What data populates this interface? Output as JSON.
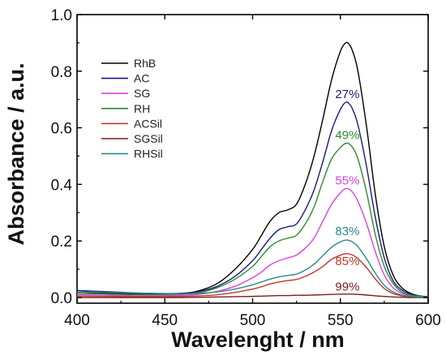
{
  "chart_data": {
    "type": "line",
    "title": "",
    "xlabel": "Wavelenght / nm",
    "ylabel": "Absorbance / a.u.",
    "xlim": [
      400,
      600
    ],
    "ylim": [
      -0.02,
      1.0
    ],
    "xticks": [
      400,
      450,
      500,
      550,
      600
    ],
    "yticks": [
      0.0,
      0.2,
      0.4,
      0.6,
      0.8,
      1.0
    ],
    "xtick_labels": [
      "400",
      "450",
      "500",
      "550",
      "600"
    ],
    "ytick_labels": [
      "0.0",
      "0.2",
      "0.4",
      "0.6",
      "0.8",
      "1.0"
    ],
    "grid": false,
    "legend_position": "top-left",
    "series": [
      {
        "name": "RhB",
        "color": "#000000",
        "x": [
          400,
          420,
          440,
          460,
          470,
          480,
          490,
          500,
          505,
          510,
          515,
          520,
          525,
          530,
          535,
          540,
          545,
          550,
          553,
          555,
          557,
          560,
          565,
          570,
          575,
          580,
          585,
          590,
          595,
          600
        ],
        "y": [
          0.02,
          0.015,
          0.012,
          0.015,
          0.025,
          0.05,
          0.1,
          0.17,
          0.22,
          0.27,
          0.3,
          0.31,
          0.33,
          0.4,
          0.5,
          0.63,
          0.77,
          0.87,
          0.9,
          0.895,
          0.87,
          0.8,
          0.6,
          0.36,
          0.18,
          0.08,
          0.035,
          0.015,
          0.006,
          0.003
        ]
      },
      {
        "name": "AC",
        "color": "#1a1a7a",
        "x": [
          400,
          420,
          440,
          460,
          470,
          480,
          490,
          500,
          505,
          510,
          515,
          520,
          525,
          530,
          535,
          540,
          545,
          550,
          553,
          555,
          557,
          560,
          565,
          570,
          575,
          580,
          585,
          590,
          595,
          600
        ],
        "y": [
          0.025,
          0.02,
          0.015,
          0.015,
          0.022,
          0.04,
          0.075,
          0.13,
          0.17,
          0.21,
          0.24,
          0.25,
          0.26,
          0.31,
          0.38,
          0.48,
          0.59,
          0.665,
          0.69,
          0.685,
          0.665,
          0.61,
          0.46,
          0.28,
          0.14,
          0.06,
          0.027,
          0.012,
          0.005,
          0.003
        ]
      },
      {
        "name": "SG",
        "color": "#e040e0",
        "x": [
          400,
          420,
          440,
          460,
          470,
          480,
          490,
          500,
          505,
          510,
          515,
          520,
          525,
          530,
          535,
          540,
          545,
          550,
          553,
          555,
          557,
          560,
          565,
          570,
          575,
          580,
          585,
          590,
          595,
          600
        ],
        "y": [
          0.01,
          0.008,
          0.006,
          0.008,
          0.012,
          0.022,
          0.04,
          0.07,
          0.09,
          0.115,
          0.13,
          0.14,
          0.15,
          0.175,
          0.21,
          0.27,
          0.33,
          0.37,
          0.385,
          0.383,
          0.372,
          0.34,
          0.26,
          0.16,
          0.08,
          0.035,
          0.015,
          0.006,
          0.003,
          0.002
        ]
      },
      {
        "name": "RH",
        "color": "#2e8b2e",
        "x": [
          400,
          420,
          440,
          460,
          470,
          480,
          490,
          500,
          505,
          510,
          515,
          520,
          525,
          530,
          535,
          540,
          545,
          550,
          553,
          555,
          557,
          560,
          565,
          570,
          575,
          580,
          585,
          590,
          595,
          600
        ],
        "y": [
          0.015,
          0.012,
          0.01,
          0.012,
          0.018,
          0.035,
          0.065,
          0.11,
          0.145,
          0.18,
          0.2,
          0.21,
          0.22,
          0.26,
          0.32,
          0.41,
          0.49,
          0.53,
          0.545,
          0.543,
          0.53,
          0.49,
          0.37,
          0.22,
          0.11,
          0.05,
          0.02,
          0.009,
          0.004,
          0.002
        ]
      },
      {
        "name": "ACSil",
        "color": "#c0392b",
        "x": [
          400,
          420,
          440,
          460,
          470,
          480,
          490,
          500,
          505,
          510,
          515,
          520,
          525,
          530,
          535,
          540,
          545,
          550,
          553,
          555,
          557,
          560,
          565,
          570,
          575,
          580,
          585,
          590,
          595,
          600
        ],
        "y": [
          0.005,
          0.004,
          0.003,
          0.004,
          0.006,
          0.01,
          0.018,
          0.03,
          0.038,
          0.048,
          0.055,
          0.06,
          0.064,
          0.075,
          0.09,
          0.11,
          0.135,
          0.15,
          0.155,
          0.154,
          0.15,
          0.138,
          0.105,
          0.065,
          0.032,
          0.014,
          0.006,
          0.003,
          0.002,
          0.001
        ]
      },
      {
        "name": "SGSil",
        "color": "#7a1f1f",
        "x": [
          400,
          420,
          440,
          460,
          470,
          480,
          490,
          500,
          505,
          510,
          515,
          520,
          525,
          530,
          535,
          540,
          545,
          550,
          553,
          555,
          557,
          560,
          565,
          570,
          575,
          580,
          585,
          590,
          595,
          600
        ],
        "y": [
          0.0,
          0.0,
          0.0,
          0.0,
          0.001,
          0.002,
          0.003,
          0.004,
          0.005,
          0.006,
          0.007,
          0.007,
          0.008,
          0.008,
          0.009,
          0.01,
          0.011,
          0.012,
          0.012,
          0.012,
          0.012,
          0.011,
          0.009,
          0.006,
          0.004,
          0.002,
          0.001,
          0.0,
          0.0,
          0.0
        ]
      },
      {
        "name": "RHSil",
        "color": "#2a8a8a",
        "x": [
          400,
          420,
          440,
          460,
          470,
          480,
          490,
          500,
          505,
          510,
          515,
          520,
          525,
          530,
          535,
          540,
          545,
          550,
          553,
          555,
          557,
          560,
          565,
          570,
          575,
          580,
          585,
          590,
          595,
          600
        ],
        "y": [
          0.02,
          0.018,
          0.015,
          0.013,
          0.015,
          0.02,
          0.03,
          0.045,
          0.055,
          0.065,
          0.073,
          0.078,
          0.083,
          0.097,
          0.118,
          0.148,
          0.178,
          0.197,
          0.203,
          0.202,
          0.196,
          0.18,
          0.136,
          0.085,
          0.043,
          0.02,
          0.009,
          0.004,
          0.002,
          0.001
        ]
      }
    ],
    "annotations": [
      {
        "text": "27%",
        "x": 554,
        "y": 0.705,
        "color": "#1a1a7a"
      },
      {
        "text": "49%",
        "x": 554,
        "y": 0.56,
        "color": "#2e8b2e"
      },
      {
        "text": "55%",
        "x": 554,
        "y": 0.4,
        "color": "#e040e0"
      },
      {
        "text": "83%",
        "x": 554,
        "y": 0.22,
        "color": "#2a8a8a"
      },
      {
        "text": "85%",
        "x": 554,
        "y": 0.115,
        "color": "#c0392b"
      },
      {
        "text": "99%",
        "x": 554,
        "y": 0.025,
        "color": "#7a1f1f"
      }
    ]
  }
}
